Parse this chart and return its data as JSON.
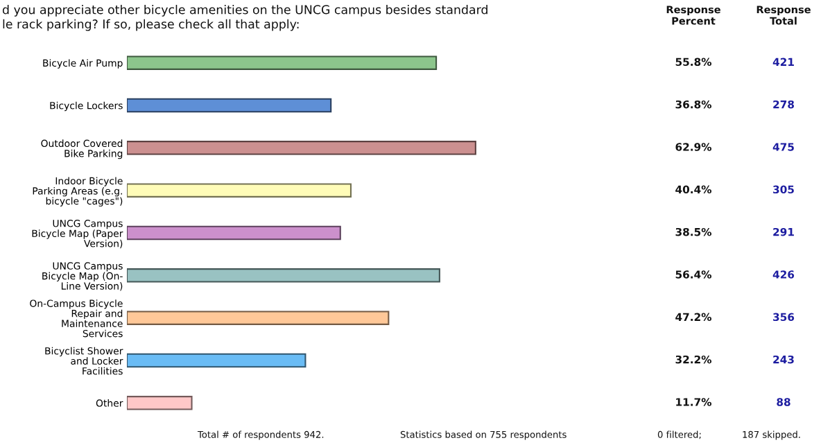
{
  "chart_data": {
    "type": "bar",
    "orientation": "horizontal",
    "title": "d you appreciate other bicycle amenities on the UNCG campus besides standard\nle rack parking? If so, please check all that apply:",
    "categories": [
      "Bicycle Air Pump",
      "Bicycle Lockers",
      "Outdoor Covered\nBike Parking",
      "Indoor Bicycle\nParking Areas (e.g.\nbicycle \"cages\")",
      "UNCG Campus\nBicycle Map (Paper\nVersion)",
      "UNCG Campus\nBicycle Map (On-\nLine Version)",
      "On-Campus Bicycle\nRepair and\nMaintenance\nServices",
      "Bicyclist Shower\nand Locker\nFacilities",
      "Other"
    ],
    "values": [
      55.8,
      36.8,
      62.9,
      40.4,
      38.5,
      56.4,
      47.2,
      32.2,
      11.7
    ],
    "colors": [
      "#8cc68c",
      "#5e8fd6",
      "#cc9090",
      "#fffcb8",
      "#cc90cc",
      "#99c2c2",
      "#ffc898",
      "#6abcf5",
      "#ffc8c8"
    ],
    "value_labels": [
      "55.8%",
      "36.8%",
      "62.9%",
      "40.4%",
      "38.5%",
      "56.4%",
      "47.2%",
      "32.2%",
      "11.7%"
    ],
    "tick_labels": "y",
    "annotations": [
      "Response\nPercent",
      "Response\nTotal",
      "421",
      "278",
      "475",
      "305",
      "291",
      "426",
      "356",
      "243",
      "88",
      "Total # of respondents 942.",
      "Statistics based on 755 respondents",
      "0 filtered;",
      "187 skipped."
    ]
  }
}
